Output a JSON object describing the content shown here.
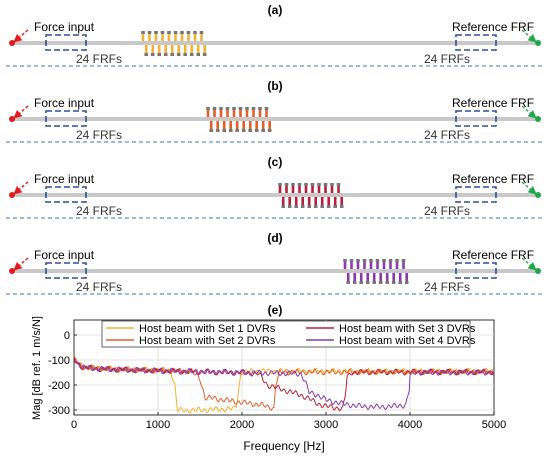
{
  "panels": [
    {
      "label": "(a)",
      "force_label": "Force input",
      "ref_label": "Reference FRF",
      "frf_left": "24 FRFs",
      "frf_right": "24 FRFs",
      "dvr_color": "#F2B233"
    },
    {
      "label": "(b)",
      "force_label": "Force input",
      "ref_label": "Reference FRF",
      "frf_left": "24 FRFs",
      "frf_right": "24 FRFs",
      "dvr_color": "#E0602A"
    },
    {
      "label": "(c)",
      "force_label": "Force input",
      "ref_label": "Reference FRF",
      "frf_left": "24 FRFs",
      "frf_right": "24 FRFs",
      "dvr_color": "#B5203A"
    },
    {
      "label": "(d)",
      "force_label": "Force input",
      "ref_label": "Reference FRF",
      "frf_left": "24 FRFs",
      "frf_right": "24 FRFs",
      "dvr_color": "#8A3AAE"
    }
  ],
  "colors": {
    "beam": "#c8c8c8",
    "force_arrow": "#e41a1c",
    "reference_arrow": "#1fa84a",
    "frf_box": "#2b4f9e",
    "dashed_line": "#3a6fd0",
    "dvr_cap": "#777777"
  },
  "chart_data": {
    "type": "line",
    "title": "(e)",
    "xlabel": "Frequency [Hz]",
    "ylabel": "Mag [dB ref. 1 m/s/N]",
    "xlim": [
      0,
      5000
    ],
    "ylim": [
      -320,
      60
    ],
    "xticks": [
      0,
      1000,
      2000,
      3000,
      4000,
      5000
    ],
    "yticks": [
      0,
      -100,
      -200,
      -300
    ],
    "grid": true,
    "legend_position": "top",
    "series": [
      {
        "name": "Host beam with Set 1 DVRs",
        "color": "#F2B233",
        "x": [
          0,
          40,
          100,
          200,
          400,
          700,
          1000,
          1150,
          1200,
          1230,
          1300,
          1500,
          1700,
          1900,
          1935,
          1960,
          1990,
          2100,
          3000,
          4000,
          5000
        ],
        "y": [
          -95,
          -110,
          -125,
          -130,
          -135,
          -138,
          -140,
          -142,
          -200,
          -300,
          -302,
          -300,
          -298,
          -295,
          -280,
          -220,
          -150,
          -145,
          -145,
          -145,
          -145
        ]
      },
      {
        "name": "Host beam with Set 2 DVRs",
        "color": "#E0602A",
        "x": [
          0,
          40,
          100,
          200,
          400,
          700,
          1000,
          1400,
          1500,
          1560,
          1650,
          1800,
          2000,
          2200,
          2350,
          2380,
          2400,
          2450,
          2600,
          3500,
          4500,
          5000
        ],
        "y": [
          -95,
          -112,
          -128,
          -132,
          -136,
          -140,
          -142,
          -145,
          -175,
          -250,
          -253,
          -260,
          -270,
          -278,
          -290,
          -295,
          -200,
          -150,
          -148,
          -148,
          -147,
          -147
        ]
      },
      {
        "name": "Host beam with Set 3 DVRs",
        "color": "#B5203A",
        "x": [
          0,
          40,
          100,
          200,
          400,
          700,
          1000,
          1500,
          2000,
          2100,
          2200,
          2300,
          2500,
          2600,
          2700,
          2800,
          2900,
          3000,
          3100,
          3200,
          3230,
          3250,
          3300,
          3500,
          4500,
          5000
        ],
        "y": [
          -95,
          -112,
          -128,
          -133,
          -137,
          -140,
          -143,
          -147,
          -150,
          -152,
          -155,
          -200,
          -220,
          -230,
          -240,
          -255,
          -275,
          -285,
          -290,
          -295,
          -240,
          -170,
          -150,
          -148,
          -148,
          -148
        ]
      },
      {
        "name": "Host beam with Set 4 DVRs",
        "color": "#8A3AAE",
        "x": [
          0,
          40,
          100,
          200,
          400,
          700,
          1000,
          1500,
          2000,
          2500,
          2700,
          2750,
          2800,
          2900,
          3000,
          3200,
          3400,
          3600,
          3800,
          3950,
          3990,
          4000,
          4050,
          4500,
          5000
        ],
        "y": [
          -95,
          -112,
          -128,
          -133,
          -137,
          -140,
          -143,
          -147,
          -150,
          -153,
          -155,
          -185,
          -230,
          -240,
          -260,
          -275,
          -285,
          -288,
          -285,
          -280,
          -220,
          -160,
          -150,
          -150,
          -150
        ]
      }
    ]
  }
}
